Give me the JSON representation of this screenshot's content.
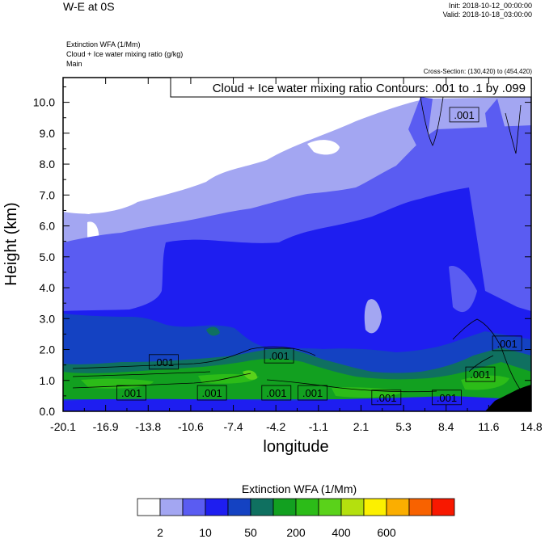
{
  "header": {
    "title": "W-E at 0S",
    "init": "Init: 2018-10-12_00:00:00",
    "valid": "Valid: 2018-10-18_03:00:00",
    "subtitle_lines": [
      "Extinction WFA   (1/Mm)",
      "Cloud + Ice water mixing ratio   (g/kg)",
      "Main"
    ],
    "cross_section": "Cross-Section: (130,420) to (454,420)",
    "contour_info": "Cloud + Ice water mixing ratio Contours: .001 to .1 by .099"
  },
  "chart_data": {
    "type": "heatmap",
    "ylabel": "Height (km)",
    "xlabel": "longitude",
    "xlim": [
      -20.1,
      14.8
    ],
    "ylim": [
      0.0,
      10.8
    ],
    "x_ticks": [
      "-20.1",
      "-16.9",
      "-13.8",
      "-10.6",
      "-7.4",
      "-4.2",
      "-1.1",
      "2.1",
      "5.3",
      "8.4",
      "11.6",
      "14.8"
    ],
    "y_ticks": [
      "0.0",
      "1.0",
      "2.0",
      "3.0",
      "4.0",
      "5.0",
      "6.0",
      "7.0",
      "8.0",
      "9.0",
      "10.0"
    ],
    "contour_labels": [
      {
        "text": ".001",
        "x": -15.0,
        "y": 0.6
      },
      {
        "text": ".001",
        "x": -12.6,
        "y": 1.6
      },
      {
        "text": ".001",
        "x": -9.0,
        "y": 0.6
      },
      {
        "text": ".001",
        "x": -4.0,
        "y": 1.8
      },
      {
        "text": ".001",
        "x": -4.2,
        "y": 0.6
      },
      {
        "text": ".001",
        "x": -1.5,
        "y": 0.6
      },
      {
        "text": ".001",
        "x": 4.0,
        "y": 0.45
      },
      {
        "text": ".001",
        "x": 8.5,
        "y": 0.45
      },
      {
        "text": ".001",
        "x": 11.0,
        "y": 1.2
      },
      {
        "text": ".001",
        "x": 13.0,
        "y": 2.2
      },
      {
        "text": ".001",
        "x": 9.8,
        "y": 9.6
      }
    ],
    "colorbar": {
      "title": "Extinction WFA  (1/Mm)",
      "colors": [
        "#ffffff",
        "#a3a6f2",
        "#5a5cf2",
        "#1e1ef0",
        "#1442c2",
        "#0f7060",
        "#12a020",
        "#2cbc18",
        "#5ad21a",
        "#b4e00e",
        "#fcf000",
        "#fbae00",
        "#f86200",
        "#f81800"
      ],
      "tick_labels": [
        {
          "label": "2",
          "after_box": 1
        },
        {
          "label": "10",
          "after_box": 3
        },
        {
          "label": "50",
          "after_box": 5
        },
        {
          "label": "200",
          "after_box": 7
        },
        {
          "label": "400",
          "after_box": 9
        },
        {
          "label": "600",
          "after_box": 11
        }
      ]
    }
  }
}
